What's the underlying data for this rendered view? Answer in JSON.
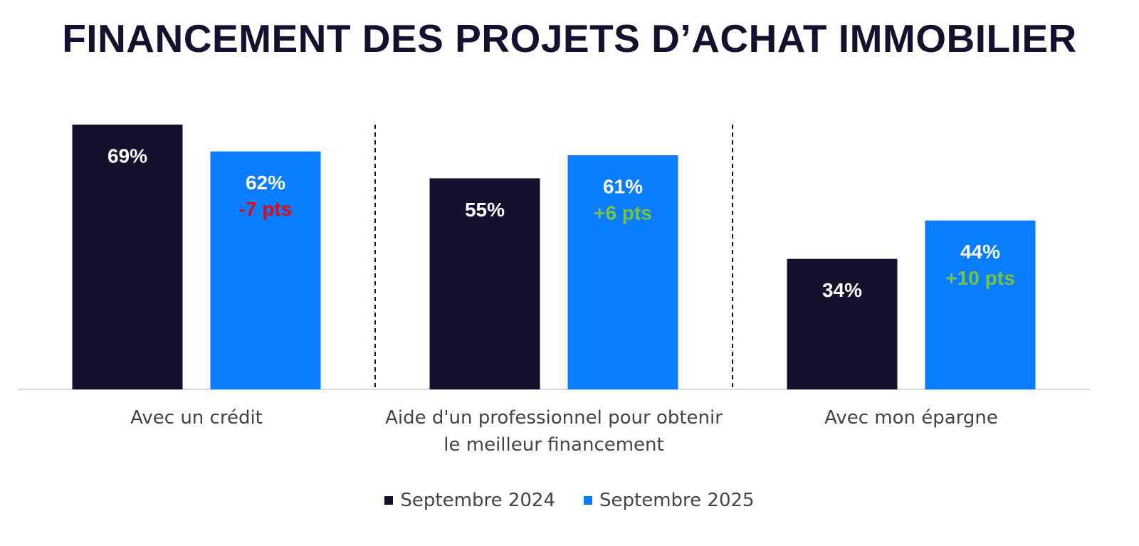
{
  "chart_data": {
    "type": "bar",
    "title": "FINANCEMENT DES PROJETS D’ACHAT IMMOBILIER",
    "categories": [
      "Avec un crédit",
      "Aide d'un professionnel pour obtenir le meilleur financement",
      "Avec mon épargne"
    ],
    "series": [
      {
        "name": "Septembre 2024",
        "color": "#14112e",
        "values": [
          69,
          55,
          34
        ],
        "value_labels": [
          "69%",
          "55%",
          "34%"
        ]
      },
      {
        "name": "Septembre 2025",
        "color": "#0a7cff",
        "values": [
          62,
          61,
          44
        ],
        "value_labels": [
          "62%",
          "61%",
          "44%"
        ],
        "annotations": [
          "-7 pts",
          "+6 pts",
          "+10 pts"
        ],
        "annotation_colors": [
          "#e30613",
          "#7ac143",
          "#7ac143"
        ]
      }
    ]
  }
}
